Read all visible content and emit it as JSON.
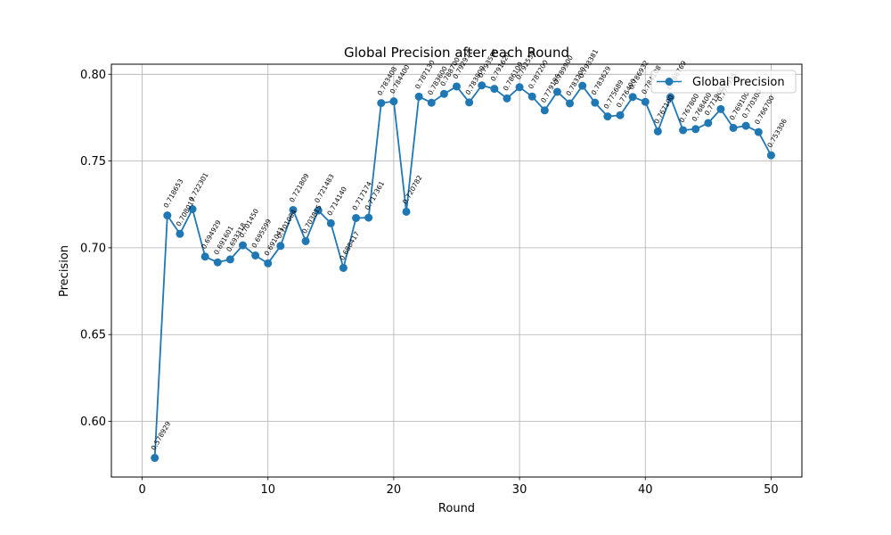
{
  "chart_data": {
    "type": "line",
    "title": "Global Precision after each Round",
    "xlabel": "Round",
    "ylabel": "Precision",
    "xlim": [
      -2.45,
      52.45
    ],
    "ylim": [
      0.5679,
      0.8058
    ],
    "xticks": [
      0,
      10,
      20,
      30,
      40,
      50
    ],
    "yticks": [
      0.6,
      0.65,
      0.7,
      0.75,
      0.8
    ],
    "ytick_labels": [
      "0.60",
      "0.65",
      "0.70",
      "0.75",
      "0.80"
    ],
    "grid": true,
    "legend": "upper right",
    "color": "#1f77b4",
    "series": [
      {
        "name": "Global Precision",
        "x": [
          1,
          2,
          3,
          4,
          5,
          6,
          7,
          8,
          9,
          10,
          11,
          12,
          13,
          14,
          15,
          16,
          17,
          18,
          19,
          20,
          21,
          22,
          23,
          24,
          25,
          26,
          27,
          28,
          29,
          30,
          31,
          32,
          33,
          34,
          35,
          36,
          37,
          38,
          39,
          40,
          41,
          42,
          43,
          44,
          45,
          46,
          47,
          48,
          49,
          50
        ],
        "values": [
          0.578929,
          0.718653,
          0.708017,
          0.722301,
          0.694929,
          0.691601,
          0.693318,
          0.70145,
          0.695599,
          0.691041,
          0.701084,
          0.721809,
          0.703815,
          0.721483,
          0.71414,
          0.688417,
          0.717174,
          0.717361,
          0.783408,
          0.7844,
          0.720782,
          0.78713,
          0.7836,
          0.7887,
          0.792971,
          0.7838,
          0.793596,
          0.79162,
          0.7861,
          0.79255,
          0.7872,
          0.779196,
          0.7899,
          0.7832,
          0.793381,
          0.783629,
          0.775689,
          0.7764,
          0.786932,
          0.784108,
          0.7671,
          0.786769,
          0.7678,
          0.7684,
          0.7719,
          0.779935,
          0.7691,
          0.7703,
          0.7667,
          0.753306
        ],
        "labels": [
          "0.578929",
          "0.718653",
          "0.708017",
          "0.722301",
          "0.694929",
          "0.691601",
          "0.693318",
          "0.701450",
          "0.695599",
          "0.691041",
          "0.701084",
          "0.721809",
          "0.703815",
          "0.721483",
          "0.714140",
          "0.688417",
          "0.717174",
          "0.717361",
          "0.783408",
          "0.784400",
          "0.720782",
          "0.787130",
          "0.783600",
          "0.788700",
          "0.792971",
          "0.783800",
          "0.793596",
          "0.791620",
          "0.786100",
          "0.792550",
          "0.787200",
          "0.779196",
          "0.789900",
          "0.783200",
          "0.793381",
          "0.783629",
          "0.775689",
          "0.776400",
          "0.786932",
          "0.784108",
          "0.767100",
          "0.786769",
          "0.767800",
          "0.768400",
          "0.771900",
          "0.779935",
          "0.769100",
          "0.770300",
          "0.766700",
          "0.753306"
        ]
      }
    ]
  }
}
